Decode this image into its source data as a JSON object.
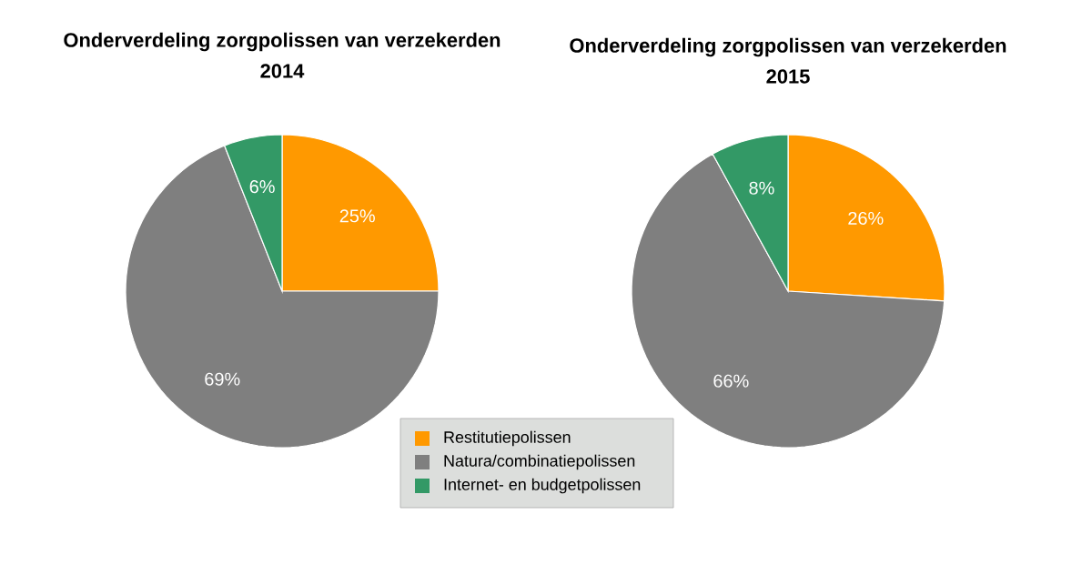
{
  "chart_data": [
    {
      "type": "pie",
      "title": "Onderverdeling zorgpolissen van verzekerden",
      "subtitle": "2014",
      "categories": [
        "Restitutiepolissen",
        "Natura/combinatiepolissen",
        "Internet- en budgetpolissen"
      ],
      "values": [
        25,
        69,
        6
      ],
      "colors": [
        "#ff9900",
        "#7f7f7f",
        "#339966"
      ],
      "value_labels": [
        "25%",
        "69%",
        "6%"
      ],
      "legend": "bottom right"
    },
    {
      "type": "pie",
      "title": "Onderverdeling zorgpolissen van verzekerden",
      "subtitle": "2015",
      "categories": [
        null,
        null,
        null
      ],
      "values": [
        26,
        66,
        8
      ],
      "colors": [
        "#ff9900",
        "#7f7f7f",
        "#339966"
      ],
      "value_labels": [
        "26%",
        "66%",
        "8%"
      ]
    }
  ]
}
